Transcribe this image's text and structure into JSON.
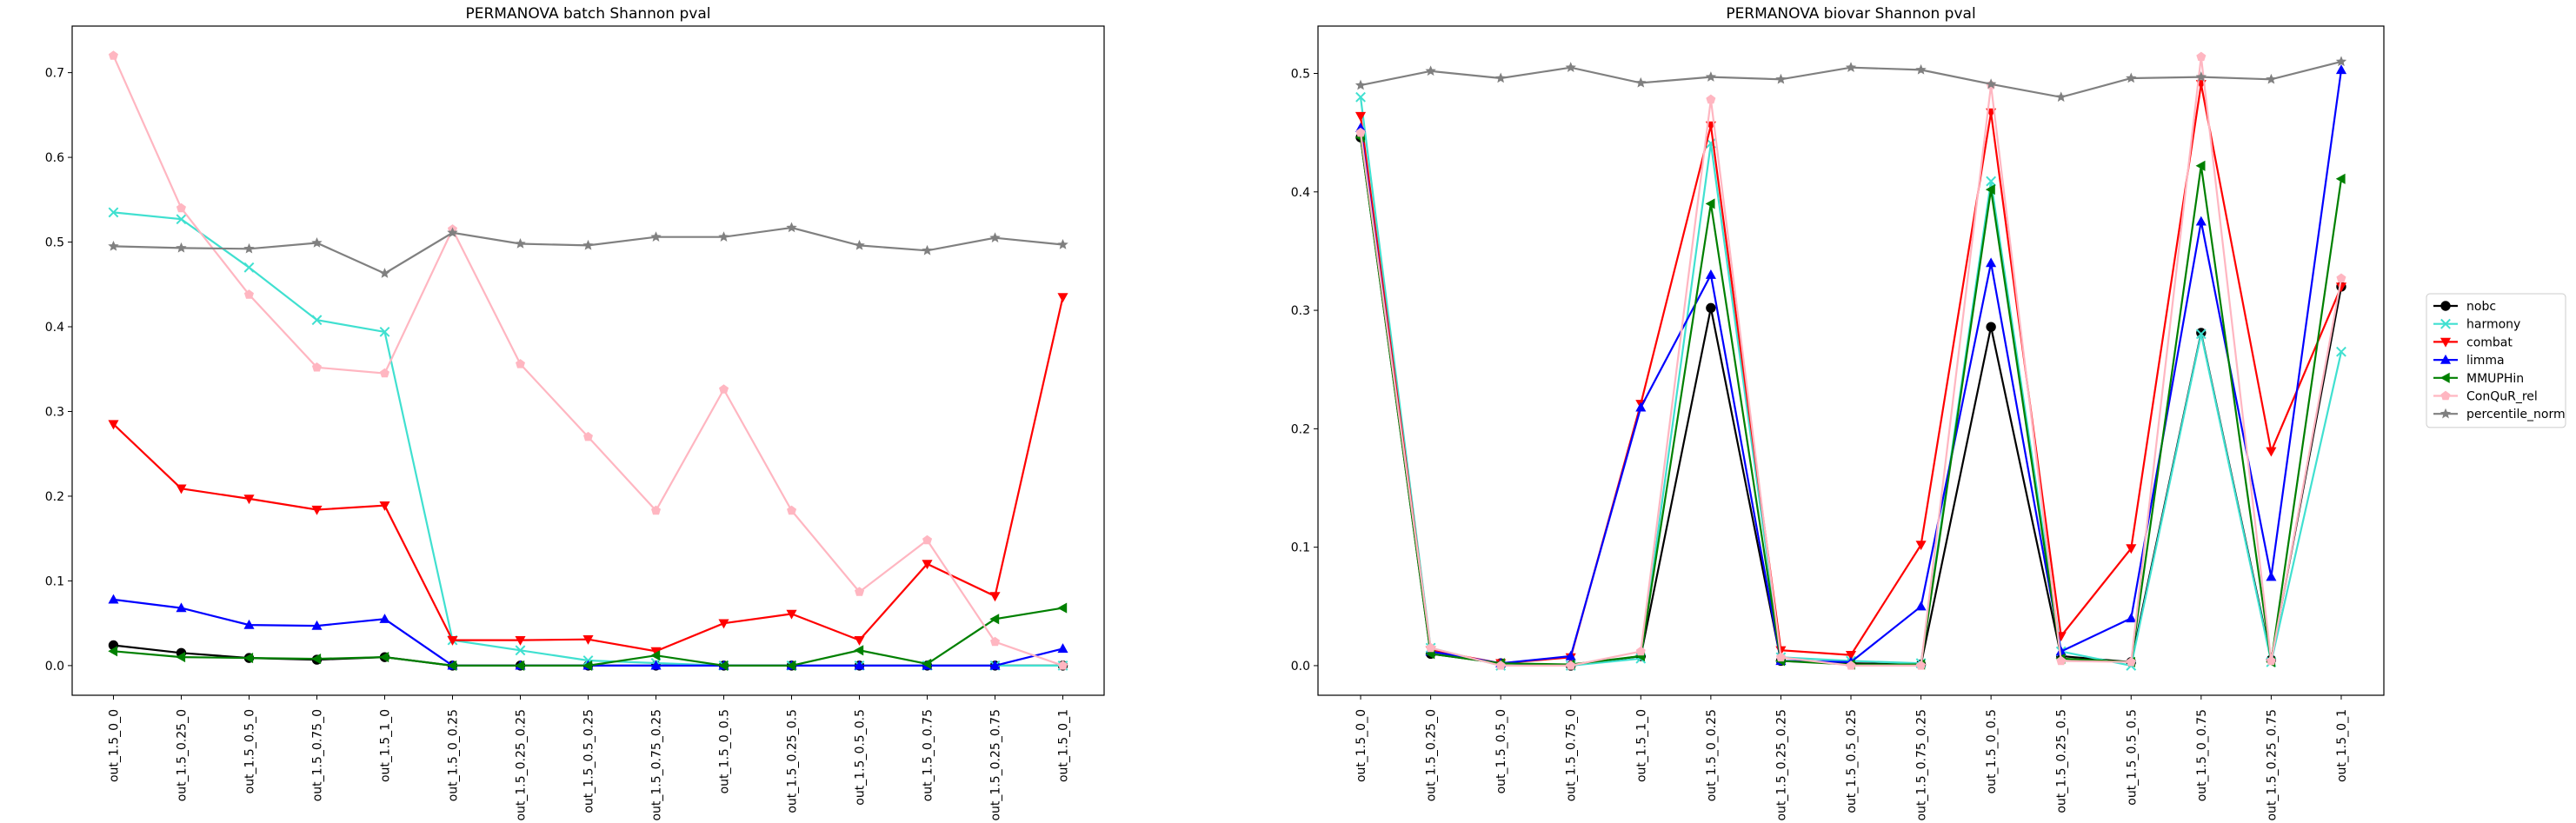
{
  "chart_data": [
    {
      "type": "line",
      "title": "PERMANOVA batch Shannon pval",
      "xlabel": "",
      "ylabel": "",
      "ylim": [
        -0.035,
        0.755
      ],
      "yticks": [
        0.0,
        0.1,
        0.2,
        0.3,
        0.4,
        0.5,
        0.6,
        0.7
      ],
      "ytick_labels": [
        "0.0",
        "0.1",
        "0.2",
        "0.3",
        "0.4",
        "0.5",
        "0.6",
        "0.7"
      ],
      "grid": false,
      "categories": [
        "out_1.5_0_0",
        "out_1.5_0.25_0",
        "out_1.5_0.5_0",
        "out_1.5_0.75_0",
        "out_1.5_1_0",
        "out_1.5_0_0.25",
        "out_1.5_0.25_0.25",
        "out_1.5_0.5_0.25",
        "out_1.5_0.75_0.25",
        "out_1.5_0_0.5",
        "out_1.5_0.25_0.5",
        "out_1.5_0.5_0.5",
        "out_1.5_0_0.75",
        "out_1.5_0.25_0.75",
        "out_1.5_0_1"
      ],
      "series": [
        {
          "name": "nobc",
          "color": "#000000",
          "marker": "circle",
          "values": [
            0.024,
            0.015,
            0.009,
            0.007,
            0.01,
            0.0,
            0.0,
            0.0,
            0.0,
            0.0,
            0.0,
            0.0,
            0.0,
            0.0,
            0.0
          ]
        },
        {
          "name": "harmony",
          "color": "#40e0d0",
          "marker": "x",
          "values": [
            0.535,
            0.527,
            0.47,
            0.408,
            0.394,
            0.03,
            0.018,
            0.006,
            0.003,
            0.0,
            0.0,
            0.0,
            0.0,
            0.0,
            0.0
          ]
        },
        {
          "name": "combat",
          "color": "#ff0000",
          "marker": "triangle-down",
          "values": [
            0.285,
            0.209,
            0.197,
            0.184,
            0.189,
            0.03,
            0.03,
            0.031,
            0.017,
            0.05,
            0.061,
            0.03,
            0.12,
            0.082,
            0.435
          ]
        },
        {
          "name": "limma",
          "color": "#0000ff",
          "marker": "triangle-up",
          "values": [
            0.078,
            0.068,
            0.048,
            0.047,
            0.055,
            0.0,
            0.0,
            0.0,
            0.0,
            0.0,
            0.0,
            0.0,
            0.0,
            0.0,
            0.02
          ]
        },
        {
          "name": "MMUPHin",
          "color": "#008000",
          "marker": "triangle-left",
          "values": [
            0.017,
            0.01,
            0.009,
            0.008,
            0.01,
            0.0,
            0.0,
            0.0,
            0.012,
            0.0,
            0.0,
            0.018,
            0.002,
            0.055,
            0.068
          ]
        },
        {
          "name": "ConQuR_rel",
          "color": "#ffb6c1",
          "marker": "pentagon",
          "values": [
            0.72,
            0.54,
            0.438,
            0.352,
            0.345,
            0.515,
            0.356,
            0.27,
            0.183,
            0.326,
            0.183,
            0.087,
            0.148,
            0.028,
            0.0
          ]
        },
        {
          "name": "percentile_norm",
          "color": "#808080",
          "marker": "star",
          "values": [
            0.495,
            0.493,
            0.492,
            0.499,
            0.463,
            0.511,
            0.498,
            0.496,
            0.506,
            0.506,
            0.517,
            0.496,
            0.49,
            0.505,
            0.497
          ]
        }
      ]
    },
    {
      "type": "line",
      "title": "PERMANOVA biovar Shannon pval",
      "xlabel": "",
      "ylabel": "",
      "ylim": [
        -0.025,
        0.54
      ],
      "yticks": [
        0.0,
        0.1,
        0.2,
        0.3,
        0.4,
        0.5
      ],
      "ytick_labels": [
        "0.0",
        "0.1",
        "0.2",
        "0.3",
        "0.4",
        "0.5"
      ],
      "grid": false,
      "legend_position": "outside-right",
      "categories": [
        "out_1.5_0_0",
        "out_1.5_0.25_0",
        "out_1.5_0.5_0",
        "out_1.5_0.75_0",
        "out_1.5_1_0",
        "out_1.5_0_0.25",
        "out_1.5_0.25_0.25",
        "out_1.5_0.5_0.25",
        "out_1.5_0.75_0.25",
        "out_1.5_0_0.5",
        "out_1.5_0.25_0.5",
        "out_1.5_0.5_0.5",
        "out_1.5_0_0.75",
        "out_1.5_0.25_0.75",
        "out_1.5_0_1"
      ],
      "series": [
        {
          "name": "nobc",
          "color": "#000000",
          "marker": "circle",
          "values": [
            0.446,
            0.01,
            0.002,
            0.0,
            0.008,
            0.302,
            0.004,
            0.002,
            0.001,
            0.286,
            0.008,
            0.003,
            0.281,
            0.005,
            0.32
          ]
        },
        {
          "name": "harmony",
          "color": "#40e0d0",
          "marker": "x",
          "values": [
            0.48,
            0.015,
            0.0,
            0.0,
            0.006,
            0.441,
            0.007,
            0.004,
            0.002,
            0.409,
            0.012,
            0.0,
            0.28,
            0.003,
            0.265
          ]
        },
        {
          "name": "combat",
          "color": "#ff0000",
          "marker": "triangle-down",
          "values": [
            0.464,
            0.013,
            0.002,
            0.007,
            0.221,
            0.456,
            0.013,
            0.009,
            0.102,
            0.467,
            0.025,
            0.099,
            0.491,
            0.181,
            0.32
          ]
        },
        {
          "name": "limma",
          "color": "#0000ff",
          "marker": "triangle-up",
          "values": [
            0.454,
            0.012,
            0.002,
            0.008,
            0.218,
            0.33,
            0.004,
            0.003,
            0.05,
            0.34,
            0.012,
            0.04,
            0.375,
            0.075,
            0.503
          ]
        },
        {
          "name": "MMUPHin",
          "color": "#008000",
          "marker": "triangle-left",
          "values": [
            0.446,
            0.01,
            0.002,
            0.001,
            0.008,
            0.39,
            0.004,
            0.001,
            0.001,
            0.402,
            0.006,
            0.003,
            0.422,
            0.003,
            0.411
          ]
        },
        {
          "name": "ConQuR_rel",
          "color": "#ffb6c1",
          "marker": "pentagon",
          "values": [
            0.45,
            0.015,
            0.0,
            0.0,
            0.012,
            0.478,
            0.007,
            0.0,
            0.0,
            0.49,
            0.004,
            0.003,
            0.514,
            0.004,
            0.327
          ]
        },
        {
          "name": "percentile_norm",
          "color": "#808080",
          "marker": "star",
          "values": [
            0.49,
            0.502,
            0.496,
            0.505,
            0.492,
            0.497,
            0.495,
            0.505,
            0.503,
            0.491,
            0.48,
            0.496,
            0.497,
            0.495,
            0.51
          ]
        }
      ]
    }
  ]
}
